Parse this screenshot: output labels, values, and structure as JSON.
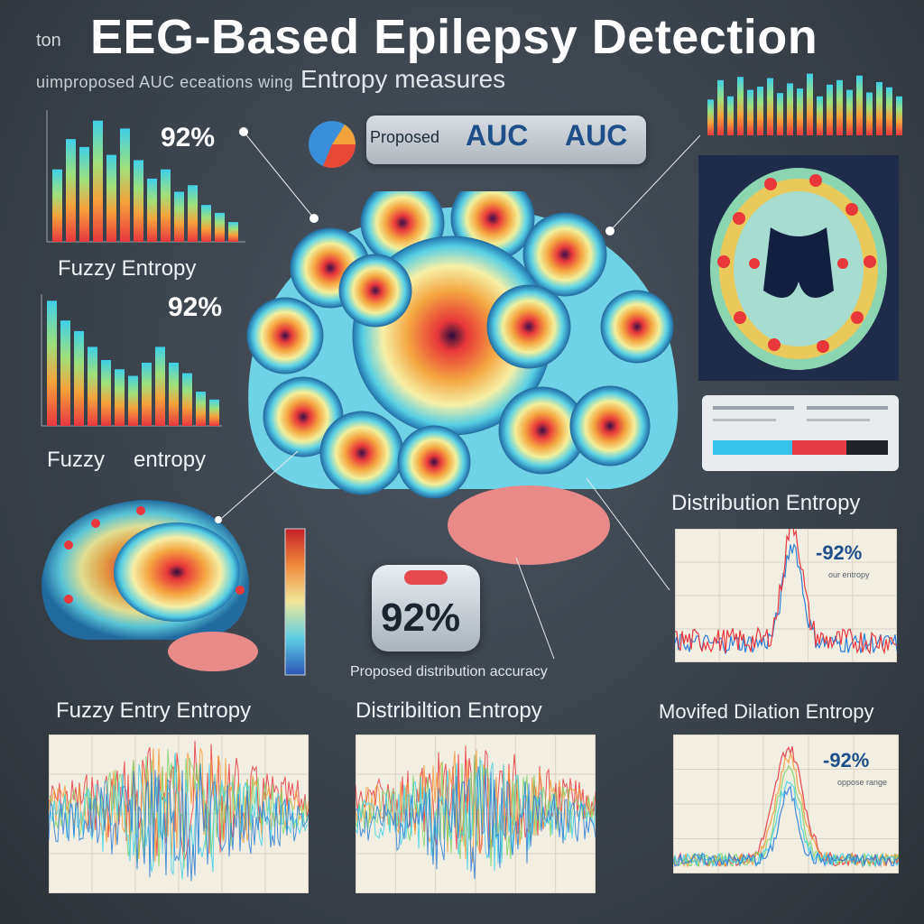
{
  "title": {
    "prefix": "ton",
    "main": "EEG-Based Epilepsy Detection"
  },
  "subtitle": {
    "prefix": "uimproposed AUC eceations wing",
    "main": "Entropy measures"
  },
  "top_left": {
    "percent": "92%",
    "label": "Fuzzy Entropy",
    "bars": [
      0.55,
      0.78,
      0.72,
      0.92,
      0.66,
      0.86,
      0.62,
      0.48,
      0.55,
      0.38,
      0.43,
      0.28,
      0.22,
      0.15
    ]
  },
  "mid_left": {
    "percent": "92%",
    "label_a": "Fuzzy",
    "label_b": "entropy",
    "bars": [
      0.95,
      0.8,
      0.72,
      0.6,
      0.5,
      0.43,
      0.38,
      0.48,
      0.6,
      0.48,
      0.4,
      0.26,
      0.2
    ]
  },
  "auc_box": {
    "prefix": "Proposed",
    "auc_a": "AUC",
    "auc_b": "AUC"
  },
  "top_right_bars": [
    0.55,
    0.85,
    0.6,
    0.9,
    0.7,
    0.75,
    0.88,
    0.65,
    0.8,
    0.72,
    0.95,
    0.6,
    0.78,
    0.85,
    0.7,
    0.92,
    0.66,
    0.82,
    0.74,
    0.6
  ],
  "gauge": {
    "value": "92%",
    "caption": "Proposed distribution accuracy"
  },
  "distribution": {
    "title": "Distribution Entropy",
    "percent": "-92%",
    "note": "our entropy"
  },
  "bottom_left": {
    "title": "Fuzzy Entry Entropy"
  },
  "bottom_mid": {
    "title": "Distribiltion Entropy"
  },
  "bottom_right": {
    "title": "Movifed Dilation Entropy",
    "percent": "-92%",
    "note": "oppose range"
  },
  "legend_colors": [
    "#36c3ea",
    "#e63a45",
    "#20242a"
  ],
  "colors": {
    "bg": "#3a424b",
    "red": "#e8373f",
    "blue": "#2c7fd6",
    "orange": "#f29a37",
    "cyan": "#3fd0e8",
    "green": "#7ed36b"
  }
}
